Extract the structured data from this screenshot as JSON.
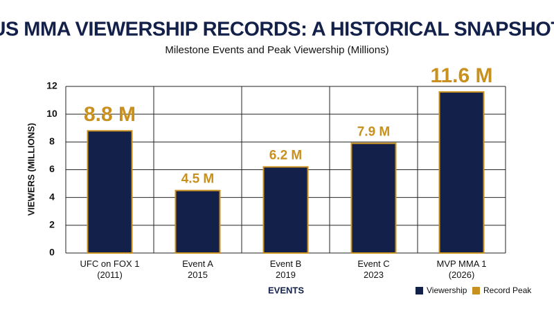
{
  "chart_data": {
    "type": "bar",
    "title": "US MMA VIEWERSHIP RECORDS: A HISTORICAL SNAPSHOT",
    "subtitle": "Milestone Events and Peak Viewership (Millions)",
    "x_label": "EVENTS",
    "y_label": "VIEWERS (MILLIONS)",
    "categories": [
      "UFC on FOX 1\n(2011)",
      "Event A\n2015",
      "Event B\n2019",
      "Event C\n2023",
      "MVP MMA 1\n(2026)"
    ],
    "values": [
      8.8,
      4.5,
      6.2,
      7.9,
      11.6
    ],
    "value_labels": [
      "8.8 M",
      "4.5 M",
      "6.2 M",
      "7.9 M",
      "11.6 M"
    ],
    "highlight": [
      true,
      false,
      false,
      false,
      true
    ],
    "color": "#13214a",
    "edge_color": "#c8901f",
    "legend": [
      "Viewership",
      "Record Peak"
    ],
    "ylim": [
      0,
      12
    ],
    "yticks": [
      0,
      2,
      4,
      6,
      8,
      10,
      12
    ],
    "grid": true
  }
}
